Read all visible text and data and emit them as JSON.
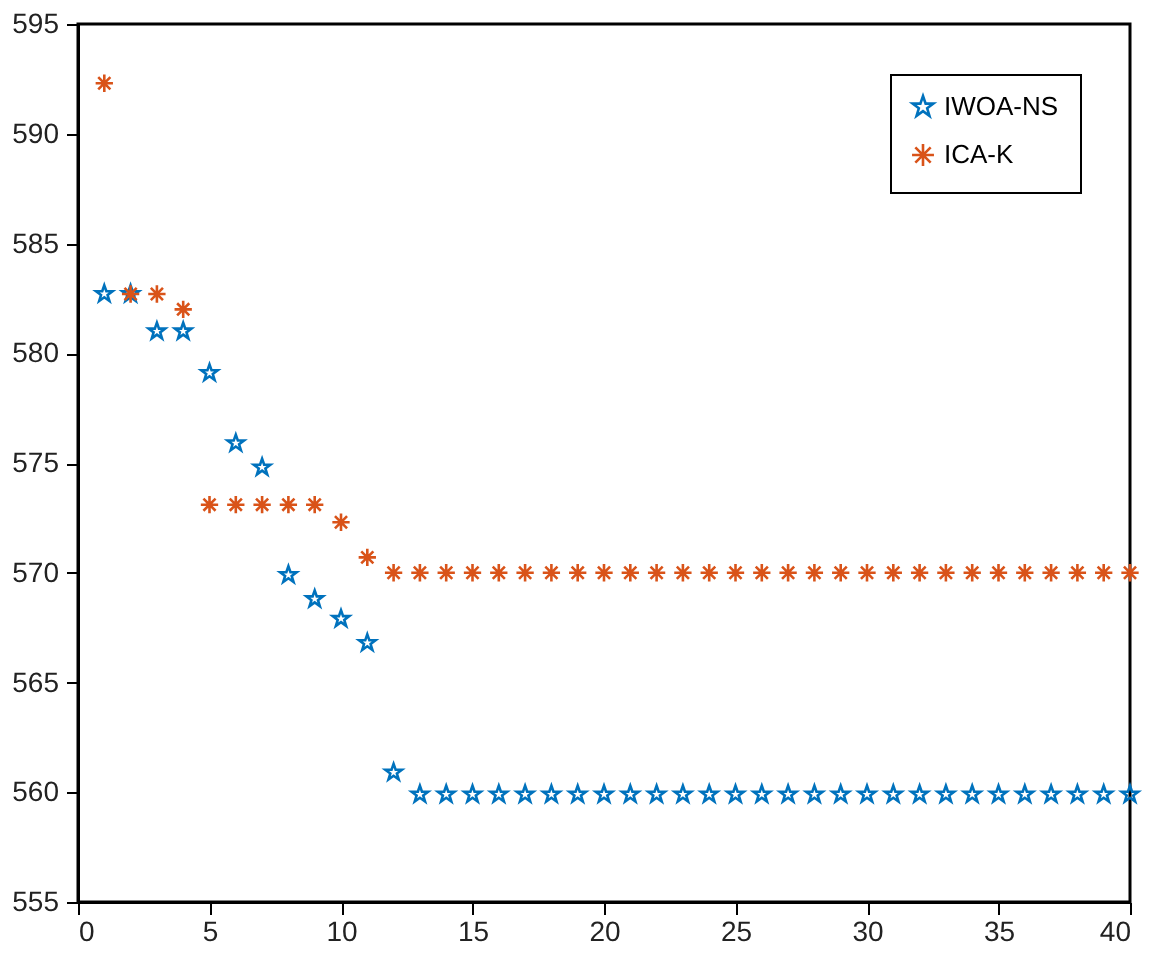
{
  "chart_data": {
    "type": "scatter",
    "xlim": [
      0,
      40
    ],
    "xticks": [
      0,
      5,
      10,
      15,
      20,
      25,
      30,
      35,
      40
    ],
    "ylim": [
      555,
      595
    ],
    "yticks": [
      555,
      560,
      565,
      570,
      575,
      580,
      585,
      590,
      595
    ],
    "grid": false,
    "legend": "top right",
    "x": [
      1,
      2,
      3,
      4,
      5,
      6,
      7,
      8,
      9,
      10,
      11,
      12,
      13,
      14,
      15,
      16,
      17,
      18,
      19,
      20,
      21,
      22,
      23,
      24,
      25,
      26,
      27,
      28,
      29,
      30,
      31,
      32,
      33,
      34,
      35,
      36,
      37,
      38,
      39,
      40
    ],
    "series": [
      {
        "name": "IWOA-NS",
        "color": "#0072bd",
        "marker": "star",
        "values": [
          582.7,
          582.7,
          581.0,
          581.0,
          579.1,
          575.9,
          574.8,
          569.9,
          568.8,
          567.9,
          566.8,
          560.9,
          559.9,
          559.9,
          559.9,
          559.9,
          559.9,
          559.9,
          559.9,
          559.9,
          559.9,
          559.9,
          559.9,
          559.9,
          559.9,
          559.9,
          559.9,
          559.9,
          559.9,
          559.9,
          559.9,
          559.9,
          559.9,
          559.9,
          559.9,
          559.9,
          559.9,
          559.9,
          559.9,
          559.9
        ]
      },
      {
        "name": "ICA-K",
        "color": "#d95319",
        "marker": "cross",
        "values": [
          592.3,
          582.7,
          582.7,
          582.0,
          573.1,
          573.1,
          573.1,
          573.1,
          573.1,
          572.3,
          570.7,
          570.0,
          570.0,
          570.0,
          570.0,
          570.0,
          570.0,
          570.0,
          570.0,
          570.0,
          570.0,
          570.0,
          570.0,
          570.0,
          570.0,
          570.0,
          570.0,
          570.0,
          570.0,
          570.0,
          570.0,
          570.0,
          570.0,
          570.0,
          570.0,
          570.0,
          570.0,
          570.0,
          570.0,
          570.0
        ]
      }
    ]
  }
}
